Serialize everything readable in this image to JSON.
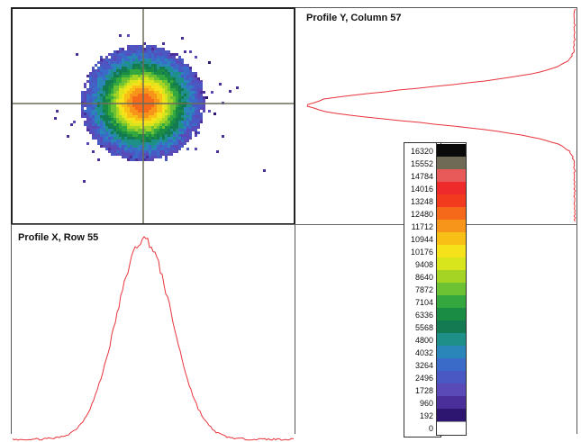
{
  "panels": {
    "profile_y_title": "Profile Y,  Column 57",
    "profile_x_title": "Profile X,  Row 55"
  },
  "colorbar": {
    "levels": [
      {
        "label": "16320",
        "color": "#0a0a0a"
      },
      {
        "label": "15552",
        "color": "#6e6a55"
      },
      {
        "label": "14784",
        "color": "#e8595a"
      },
      {
        "label": "14016",
        "color": "#ee2a2a"
      },
      {
        "label": "13248",
        "color": "#f23a1e"
      },
      {
        "label": "12480",
        "color": "#f56a1a"
      },
      {
        "label": "11712",
        "color": "#f7951a"
      },
      {
        "label": "10944",
        "color": "#f8bf16"
      },
      {
        "label": "10176",
        "color": "#f6e21a"
      },
      {
        "label": "9408",
        "color": "#d8e41c"
      },
      {
        "label": "8640",
        "color": "#a6d424"
      },
      {
        "label": "7872",
        "color": "#6cc232"
      },
      {
        "label": "7104",
        "color": "#34a83e"
      },
      {
        "label": "6336",
        "color": "#1a8c44"
      },
      {
        "label": "5568",
        "color": "#147a52"
      },
      {
        "label": "4800",
        "color": "#1f8f8a"
      },
      {
        "label": "4032",
        "color": "#2a86b8"
      },
      {
        "label": "3264",
        "color": "#3a6bc8"
      },
      {
        "label": "2496",
        "color": "#4a58c4"
      },
      {
        "label": "1728",
        "color": "#5a4ab8"
      },
      {
        "label": "960",
        "color": "#4a2f9a"
      },
      {
        "label": "192",
        "color": "#2c1670"
      },
      {
        "label": "0",
        "color": "#ffffff"
      }
    ]
  },
  "colors": {
    "profile_line": "#e8343c",
    "crosshair": "#6b6b5a"
  }
}
